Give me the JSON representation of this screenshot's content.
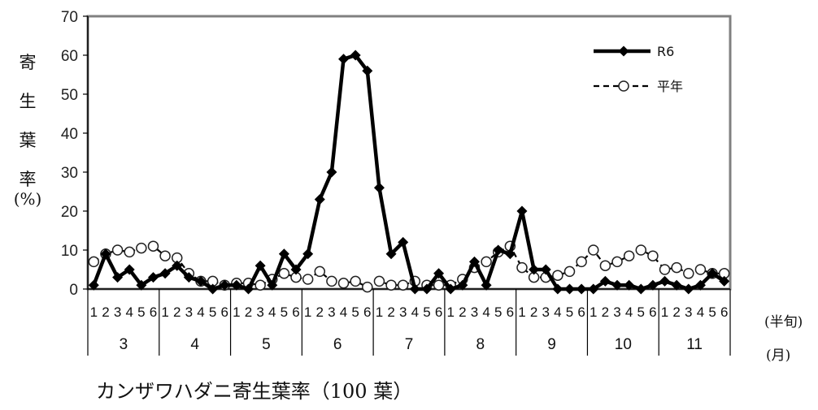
{
  "chart_data": {
    "type": "line",
    "title": "",
    "caption": "カンザワハダニ寄生葉率（100 葉）",
    "ylabel_chars": [
      "寄",
      "生",
      "葉",
      "率"
    ],
    "ylabel_unit": "(%)",
    "ylim": [
      0,
      70
    ],
    "yticks": [
      "0",
      "10",
      "20",
      "30",
      "40",
      "50",
      "60",
      "70"
    ],
    "grid": false,
    "legend_position": "top-right",
    "x_unit_halfmonth": "(半旬)",
    "x_unit_month": "(月)",
    "months": [
      "3",
      "4",
      "5",
      "6",
      "7",
      "8",
      "9",
      "10",
      "11"
    ],
    "pentads": [
      "1",
      "2",
      "3",
      "4",
      "5",
      "6"
    ],
    "series": [
      {
        "name": "R6",
        "style": "solid-diamond",
        "color": "#000000",
        "values": [
          1,
          9,
          3,
          5,
          1,
          3,
          4,
          6,
          3,
          2,
          0,
          1,
          1,
          0,
          6,
          1,
          9,
          5,
          9,
          23,
          30,
          59,
          60,
          56,
          26,
          9,
          12,
          0,
          0,
          4,
          0,
          1,
          7,
          1,
          10,
          9,
          20,
          5,
          5,
          0,
          0,
          0,
          0,
          2,
          1,
          1,
          0,
          1,
          2,
          1,
          0,
          1,
          4,
          2
        ]
      },
      {
        "name": "平年",
        "style": "dashed-circle",
        "color": "#000000",
        "values": [
          7,
          9,
          10,
          9.5,
          10.5,
          11,
          8.5,
          8,
          4,
          2,
          2,
          1,
          1.5,
          1.5,
          1,
          2.5,
          4,
          3,
          2.5,
          4.5,
          2,
          1.5,
          2,
          0.5,
          2,
          1,
          1,
          2,
          1,
          1,
          1,
          2.5,
          5.5,
          7,
          9.5,
          11,
          5.5,
          3,
          3,
          3.5,
          4.5,
          7,
          10,
          6,
          7,
          8.5,
          10,
          8.5,
          5,
          5.5,
          4,
          5,
          4,
          4
        ]
      }
    ]
  }
}
